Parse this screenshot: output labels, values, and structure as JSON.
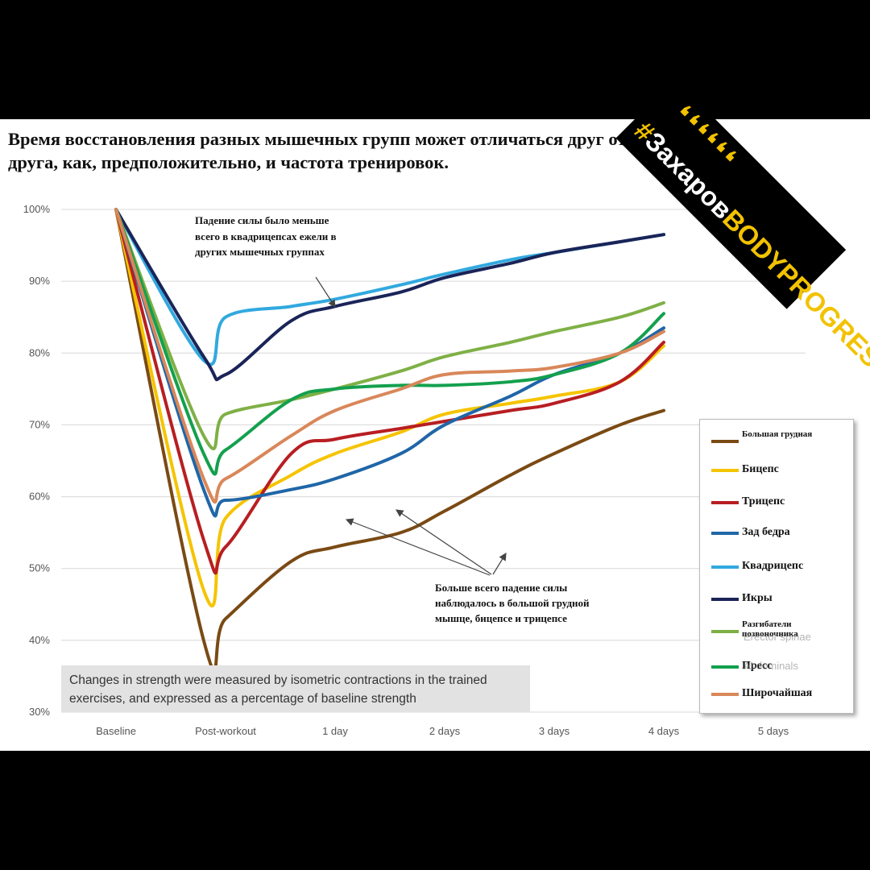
{
  "title": "Время восстановления разных мышечных групп может отличаться друг от друга, как, предположительно, и частота тренировок.",
  "note": "Changes in strength were measured by isometric contractions in the trained exercises, and expressed as a percentage of baseline strength",
  "annotation_top": [
    "Падение силы было меньше",
    "всего в квадрицепсах ежели в",
    "других мышечных группах"
  ],
  "annotation_bottom": [
    "Больше всего падение силы",
    "наблюдалось в большой грудной",
    "мышце, бицепсе и трицепсе"
  ],
  "badge": {
    "hash": "#",
    "text": "Захаров",
    "accent": "BODYPROGRESS",
    "marks": "❛❛❛❛❛❛"
  },
  "legend_overlay": [
    "Erector spinae",
    "Abdominals"
  ],
  "chart_data": {
    "type": "line",
    "categories": [
      "Baseline",
      "Post-workout",
      "1 day",
      "2 days",
      "3 days",
      "4 days",
      "5 days"
    ],
    "x": [
      0,
      0.8,
      1,
      1.6,
      2,
      2.6,
      3,
      3.6,
      4,
      4.6,
      5,
      5.6,
      6
    ],
    "ylim": [
      30,
      100
    ],
    "yticks": [
      "30%",
      "40%",
      "50%",
      "60%",
      "70%",
      "80%",
      "90%",
      "100%"
    ],
    "series": [
      {
        "name": "Большая грудная",
        "color": "#7a4a14",
        "values": [
          100,
          40,
          43,
          51,
          53,
          55,
          58,
          63,
          66,
          70,
          72,
          72,
          72
        ]
      },
      {
        "name": "Бицепс",
        "color": "#f5c400",
        "values": [
          100,
          47,
          57,
          63,
          66,
          69,
          71.5,
          73,
          74,
          76,
          81,
          81,
          81
        ]
      },
      {
        "name": "Трицепс",
        "color": "#b81e22",
        "values": [
          100,
          54,
          53,
          66,
          68,
          69.5,
          70.5,
          72,
          73,
          76,
          81.5,
          81.5,
          81.5
        ]
      },
      {
        "name": "Зад бедра",
        "color": "#2066a8",
        "values": [
          100,
          61,
          59.5,
          61,
          62.5,
          66,
          70,
          74,
          77,
          80,
          83.5,
          83.5,
          83.5
        ]
      },
      {
        "name": "Квадрицепс",
        "color": "#31a9df",
        "values": [
          100,
          79,
          85,
          86.5,
          87.5,
          89.5,
          91,
          93,
          94,
          95.5,
          96.5,
          96.5,
          96.5
        ]
      },
      {
        "name": "Икры",
        "color": "#1a2458",
        "values": [
          100,
          79.5,
          77,
          84.5,
          86.5,
          88.5,
          90.5,
          92.5,
          94,
          95.5,
          96.5,
          96.5,
          96.5
        ]
      },
      {
        "name": "Разгибатели позвоночника",
        "color": "#7fb046",
        "values": [
          100,
          68.5,
          71.5,
          73.5,
          75,
          77.5,
          79.5,
          81.5,
          83,
          85,
          87,
          87,
          87
        ]
      },
      {
        "name": "Пресс",
        "color": "#14a04e",
        "values": [
          100,
          66,
          66.5,
          73.5,
          75,
          75.5,
          75.5,
          76,
          77,
          80,
          85.5,
          85.5,
          85.5
        ]
      },
      {
        "name": "Широчайшая",
        "color": "#d9875a",
        "values": [
          100,
          62.5,
          62.5,
          68.5,
          72,
          75,
          77,
          77.5,
          78,
          80,
          83,
          83,
          83
        ]
      }
    ]
  }
}
